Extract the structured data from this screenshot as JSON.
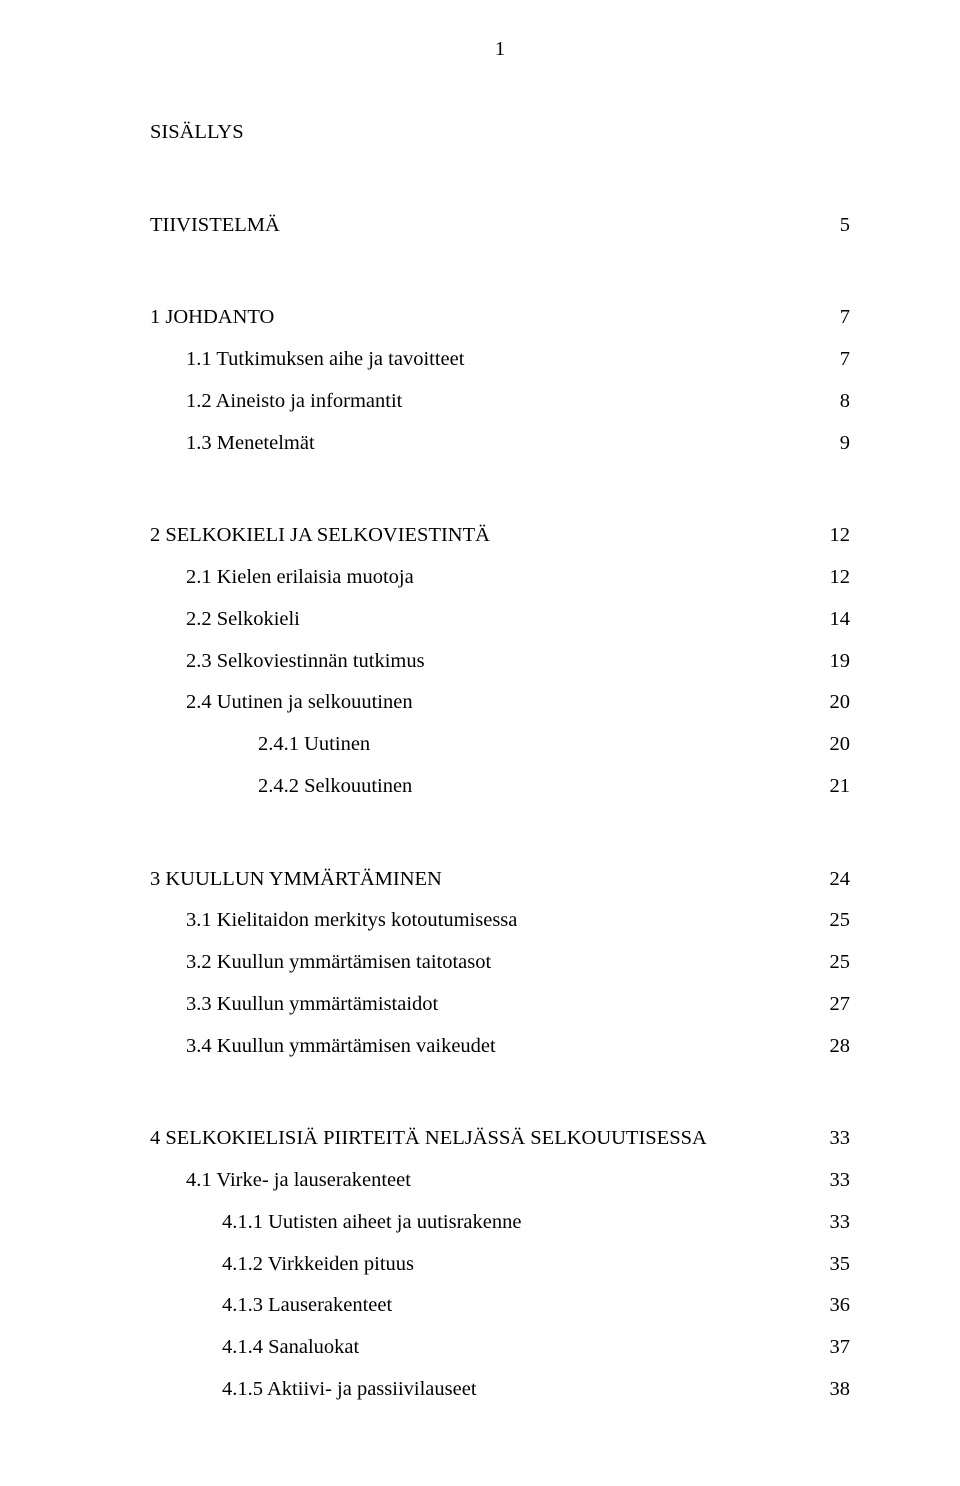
{
  "page_number": "1",
  "title": "SISÄLLYS",
  "sections": {
    "tiivistelma": {
      "label": "TIIVISTELMÄ",
      "page": "5"
    },
    "s1": {
      "heading": {
        "label": "1 JOHDANTO",
        "page": "7"
      },
      "items": [
        {
          "label": "1.1 Tutkimuksen aihe ja tavoitteet",
          "page": "7"
        },
        {
          "label": "1.2 Aineisto ja informantit",
          "page": "8"
        },
        {
          "label": "1.3 Menetelmät",
          "page": "9"
        }
      ]
    },
    "s2": {
      "heading": {
        "label": "2 SELKOKIELI JA SELKOVIESTINTÄ",
        "page": "12"
      },
      "items": [
        {
          "label": "2.1 Kielen erilaisia muotoja",
          "page": "12"
        },
        {
          "label": "2.2 Selkokieli",
          "page": "14"
        },
        {
          "label": "2.3 Selkoviestinnän tutkimus",
          "page": "19"
        },
        {
          "label": "2.4 Uutinen ja selkouutinen",
          "page": "20"
        }
      ],
      "subitems": [
        {
          "label": "2.4.1 Uutinen",
          "page": "20"
        },
        {
          "label": "2.4.2 Selkouutinen",
          "page": "21"
        }
      ]
    },
    "s3": {
      "heading": {
        "label": "3 KUULLUN YMMÄRTÄMINEN",
        "page": "24"
      },
      "items": [
        {
          "label": "3.1 Kielitaidon merkitys kotoutumisessa",
          "page": "25"
        },
        {
          "label": "3.2 Kuullun ymmärtämisen taitotasot",
          "page": "25"
        },
        {
          "label": "3.3 Kuullun ymmärtämistaidot",
          "page": "27"
        },
        {
          "label": "3.4 Kuullun ymmärtämisen vaikeudet",
          "page": "28"
        }
      ]
    },
    "s4": {
      "heading": {
        "label": "4 SELKOKIELISIÄ PIIRTEITÄ NELJÄSSÄ SELKOUUTISESSA",
        "page": "33"
      },
      "levelA": [
        {
          "label": "4.1 Virke- ja lauserakenteet",
          "page": "33"
        }
      ],
      "levelB": [
        {
          "label": "4.1.1 Uutisten aiheet ja uutisrakenne",
          "page": "33"
        },
        {
          "label": "4.1.2 Virkkeiden pituus",
          "page": "35"
        },
        {
          "label": "4.1.3 Lauserakenteet",
          "page": "36"
        },
        {
          "label": "4.1.4 Sanaluokat",
          "page": "37"
        },
        {
          "label": "4.1.5 Aktiivi- ja passiivilauseet",
          "page": "38"
        }
      ]
    }
  }
}
